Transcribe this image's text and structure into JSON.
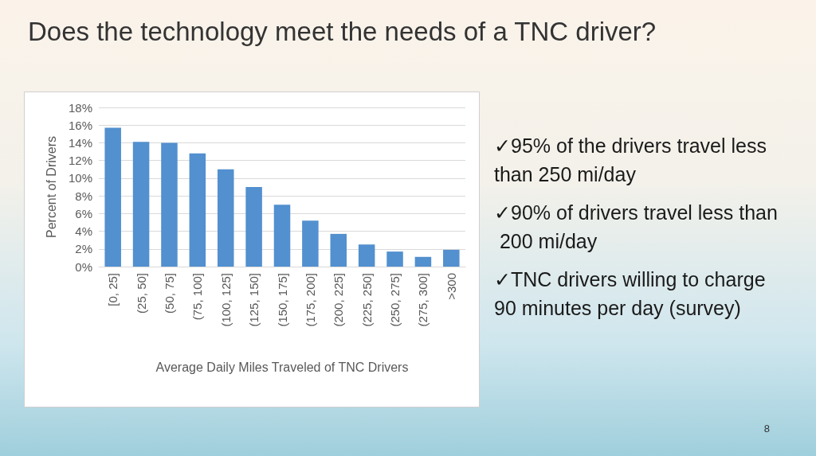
{
  "chart_data": {
    "type": "bar",
    "title": "Does the technology meet the needs of a TNC driver?",
    "xlabel": "Average Daily Miles Traveled of TNC Drivers",
    "ylabel": "Percent of Drivers",
    "categories": [
      "[0, 25]",
      "(25, 50]",
      "(50, 75]",
      "(75, 100]",
      "(100, 125]",
      "(125, 150]",
      "(150, 175]",
      "(175, 200]",
      "(200, 225]",
      "(225, 250]",
      "(250, 275]",
      "(275, 300]",
      ">300"
    ],
    "values": [
      15.7,
      14.1,
      14.0,
      12.8,
      11.0,
      9.0,
      7.0,
      5.2,
      3.7,
      2.5,
      1.7,
      1.1,
      1.9
    ],
    "color": "#5290cf",
    "ylim": [
      0,
      18
    ],
    "yticks": [
      {
        "value": 0,
        "label": "0%"
      },
      {
        "value": 2,
        "label": "2%"
      },
      {
        "value": 4,
        "label": "4%"
      },
      {
        "value": 6,
        "label": "6%"
      },
      {
        "value": 8,
        "label": "8%"
      },
      {
        "value": 10,
        "label": "10%"
      },
      {
        "value": 12,
        "label": "12%"
      },
      {
        "value": 14,
        "label": "14%"
      },
      {
        "value": 16,
        "label": "16%"
      },
      {
        "value": 18,
        "label": "18%"
      }
    ],
    "grid": "y",
    "annotations": [
      "✓95% of the drivers travel less than 250 mi/day",
      "✓90% of drivers travel less than 200 mi/day",
      "✓TNC drivers willing to charge 90 minutes per day (survey)",
      "8"
    ]
  }
}
